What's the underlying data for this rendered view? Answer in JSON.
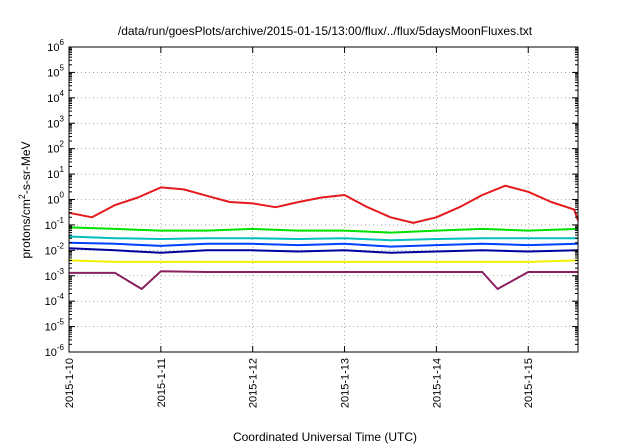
{
  "chart_data": {
    "type": "line",
    "title": "/data/run/goesPlots/archive/2015-01-15/13:00/flux/../flux/5daysMoonFluxes.txt",
    "xlabel": "Coordinated Universal Time (UTC)",
    "ylabel": {
      "prefix": "protons/cm",
      "sup": "2",
      "suffix": "-s-sr-MeV"
    },
    "yscale": "log",
    "ylim_exp": [
      -6,
      6
    ],
    "xlim": [
      "2015-01-10",
      "2015-01-15 13:00"
    ],
    "x_ticks": [
      "2015-1-10",
      "2015-1-11",
      "2015-1-12",
      "2015-1-13",
      "2015-1-14",
      "2015-1-15"
    ],
    "y_tick_exponents": [
      -6,
      -5,
      -4,
      -3,
      -2,
      -1,
      0,
      1,
      2,
      3,
      4,
      5,
      6
    ],
    "y_tick_base": "10",
    "grid": true,
    "legend": "none",
    "series": [
      {
        "color": "#e41a1c",
        "x": [
          "2015-01-10 00:00",
          "2015-01-10 06:00",
          "2015-01-10 12:00",
          "2015-01-10 18:00",
          "2015-01-11 00:00",
          "2015-01-11 06:00",
          "2015-01-11 12:00",
          "2015-01-11 18:00",
          "2015-01-12 00:00",
          "2015-01-12 06:00",
          "2015-01-12 12:00",
          "2015-01-12 18:00",
          "2015-01-13 00:00",
          "2015-01-13 06:00",
          "2015-01-13 12:00",
          "2015-01-13 18:00",
          "2015-01-14 00:00",
          "2015-01-14 06:00",
          "2015-01-14 12:00",
          "2015-01-14 18:00",
          "2015-01-15 00:00",
          "2015-01-15 06:00",
          "2015-01-15 12:00",
          "2015-01-15 13:00"
        ],
        "y": [
          0.3,
          0.2,
          0.6,
          1.2,
          3.0,
          2.5,
          1.4,
          0.8,
          0.7,
          0.5,
          0.8,
          1.2,
          1.5,
          0.5,
          0.2,
          0.12,
          0.2,
          0.5,
          1.5,
          3.5,
          2.0,
          0.8,
          0.4,
          0.15
        ]
      },
      {
        "color": "#00e000",
        "x": [
          "2015-01-10 00:00",
          "2015-01-10 12:00",
          "2015-01-11 00:00",
          "2015-01-11 12:00",
          "2015-01-12 00:00",
          "2015-01-12 12:00",
          "2015-01-13 00:00",
          "2015-01-13 12:00",
          "2015-01-14 00:00",
          "2015-01-14 12:00",
          "2015-01-15 00:00",
          "2015-01-15 13:00"
        ],
        "y": [
          0.08,
          0.07,
          0.06,
          0.06,
          0.07,
          0.06,
          0.06,
          0.05,
          0.06,
          0.07,
          0.06,
          0.07
        ]
      },
      {
        "color": "#00c0c0",
        "x": [
          "2015-01-10 00:00",
          "2015-01-10 12:00",
          "2015-01-11 00:00",
          "2015-01-11 12:00",
          "2015-01-12 00:00",
          "2015-01-12 12:00",
          "2015-01-13 00:00",
          "2015-01-13 12:00",
          "2015-01-14 00:00",
          "2015-01-14 12:00",
          "2015-01-15 00:00",
          "2015-01-15 13:00"
        ],
        "y": [
          0.035,
          0.03,
          0.028,
          0.03,
          0.03,
          0.028,
          0.03,
          0.025,
          0.028,
          0.03,
          0.03,
          0.03
        ]
      },
      {
        "color": "#0040ff",
        "x": [
          "2015-01-10 00:00",
          "2015-01-10 12:00",
          "2015-01-11 00:00",
          "2015-01-11 12:00",
          "2015-01-12 00:00",
          "2015-01-12 12:00",
          "2015-01-13 00:00",
          "2015-01-13 12:00",
          "2015-01-14 00:00",
          "2015-01-14 12:00",
          "2015-01-15 00:00",
          "2015-01-15 13:00"
        ],
        "y": [
          0.02,
          0.018,
          0.015,
          0.018,
          0.018,
          0.016,
          0.018,
          0.014,
          0.016,
          0.018,
          0.016,
          0.018
        ]
      },
      {
        "color": "#0000a0",
        "x": [
          "2015-01-10 00:00",
          "2015-01-10 12:00",
          "2015-01-11 00:00",
          "2015-01-11 12:00",
          "2015-01-12 00:00",
          "2015-01-12 12:00",
          "2015-01-13 00:00",
          "2015-01-13 12:00",
          "2015-01-14 00:00",
          "2015-01-14 12:00",
          "2015-01-15 00:00",
          "2015-01-15 13:00"
        ],
        "y": [
          0.012,
          0.01,
          0.008,
          0.01,
          0.01,
          0.009,
          0.01,
          0.008,
          0.009,
          0.01,
          0.009,
          0.01
        ]
      },
      {
        "color": "#f0f000",
        "x": [
          "2015-01-10 00:00",
          "2015-01-10 12:00",
          "2015-01-11 00:00",
          "2015-01-11 12:00",
          "2015-01-12 00:00",
          "2015-01-12 12:00",
          "2015-01-13 00:00",
          "2015-01-13 12:00",
          "2015-01-14 00:00",
          "2015-01-14 12:00",
          "2015-01-15 00:00",
          "2015-01-15 13:00"
        ],
        "y": [
          0.004,
          0.0035,
          0.0035,
          0.0035,
          0.0035,
          0.0035,
          0.0035,
          0.0035,
          0.0035,
          0.0035,
          0.0035,
          0.004
        ]
      },
      {
        "color": "#8b2060",
        "x": [
          "2015-01-10 00:00",
          "2015-01-10 12:00",
          "2015-01-10 19:00",
          "2015-01-11 00:00",
          "2015-01-11 12:00",
          "2015-01-12 00:00",
          "2015-01-12 12:00",
          "2015-01-13 00:00",
          "2015-01-13 12:00",
          "2015-01-14 00:00",
          "2015-01-14 12:00",
          "2015-01-14 16:00",
          "2015-01-15 00:00",
          "2015-01-15 13:00"
        ],
        "y": [
          0.0013,
          0.0013,
          0.0003,
          0.0015,
          0.0014,
          0.0014,
          0.0014,
          0.0014,
          0.0014,
          0.0014,
          0.0014,
          0.0003,
          0.0014,
          0.0014
        ]
      }
    ]
  }
}
